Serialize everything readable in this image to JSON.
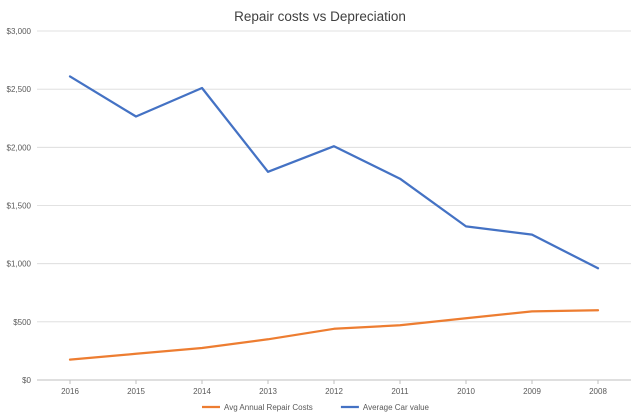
{
  "chart_data": {
    "type": "line",
    "title": "Repair costs vs Depreciation",
    "categories": [
      "2016",
      "2015",
      "2014",
      "2013",
      "2012",
      "2011",
      "2010",
      "2009",
      "2008"
    ],
    "series": [
      {
        "name": "Avg Annual Repair Costs",
        "color": "#ED7D31",
        "values": [
          175,
          225,
          275,
          350,
          440,
          470,
          530,
          590,
          600
        ]
      },
      {
        "name": "Average Car value",
        "color": "#4472C4",
        "values": [
          2610,
          2265,
          2510,
          1790,
          2010,
          1730,
          1320,
          1250,
          960
        ]
      }
    ],
    "y_ticks": [
      "$0",
      "$500",
      "$1,000",
      "$1,500",
      "$2,000",
      "$2,500",
      "$3,000"
    ],
    "ylim": [
      0,
      3000
    ],
    "grid": true,
    "legend_position": "bottom"
  }
}
